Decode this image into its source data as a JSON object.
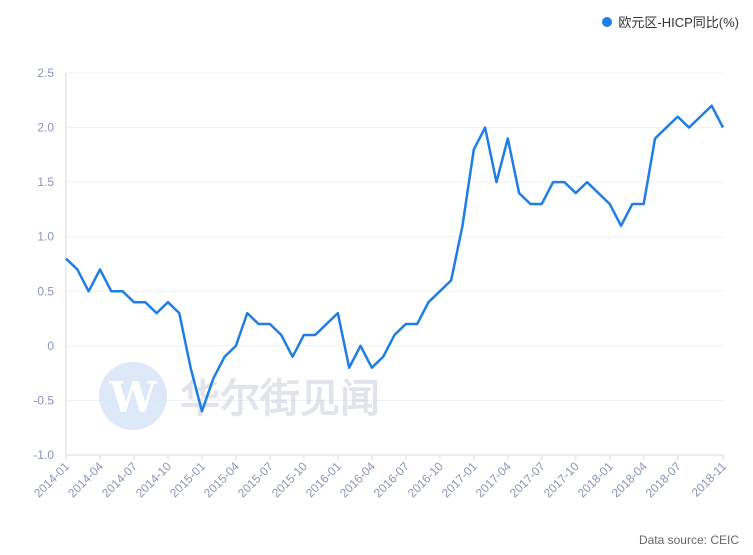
{
  "legend": {
    "label": "欧元区-HICP同比(%)",
    "color": "#1f7ee6"
  },
  "source": "Data source: CEIC",
  "watermark": {
    "text": "华尔街见闻",
    "logo": "wallstreetcn-logo"
  },
  "chart_data": {
    "type": "line",
    "title": "",
    "xlabel": "",
    "ylabel": "",
    "ylim": [
      -1.0,
      2.5
    ],
    "yticks": [
      "2.5",
      "2.0",
      "1.5",
      "1.0",
      "0.5",
      "0",
      "-0.5",
      "-1.0"
    ],
    "grid": true,
    "legend_position": "top-right",
    "x_tick_labels": [
      "2014-01",
      "2014-04",
      "2014-07",
      "2014-10",
      "2015-01",
      "2015-04",
      "2015-07",
      "2015-10",
      "2016-01",
      "2016-04",
      "2016-07",
      "2016-10",
      "2017-01",
      "2017-04",
      "2017-07",
      "2017-10",
      "2018-01",
      "2018-04",
      "2018-07",
      "2018-11"
    ],
    "x_tick_indices": [
      0,
      3,
      6,
      9,
      12,
      15,
      18,
      21,
      24,
      27,
      30,
      33,
      36,
      39,
      42,
      45,
      48,
      51,
      54,
      58
    ],
    "series": [
      {
        "name": "欧元区-HICP同比(%)",
        "color": "#1f7ee6",
        "x_start": "2014-01",
        "x_end": "2018-11",
        "values": [
          0.8,
          0.7,
          0.5,
          0.7,
          0.5,
          0.5,
          0.4,
          0.4,
          0.3,
          0.4,
          0.3,
          -0.2,
          -0.6,
          -0.3,
          -0.1,
          0.0,
          0.3,
          0.2,
          0.2,
          0.1,
          -0.1,
          0.1,
          0.1,
          0.2,
          0.3,
          -0.2,
          0.0,
          -0.2,
          -0.1,
          0.1,
          0.2,
          0.2,
          0.4,
          0.5,
          0.6,
          1.1,
          1.8,
          2.0,
          1.5,
          1.9,
          1.4,
          1.3,
          1.3,
          1.5,
          1.5,
          1.4,
          1.5,
          1.4,
          1.3,
          1.1,
          1.3,
          1.3,
          1.9,
          2.0,
          2.1,
          2.0,
          2.1,
          2.2,
          2.0
        ]
      }
    ]
  }
}
